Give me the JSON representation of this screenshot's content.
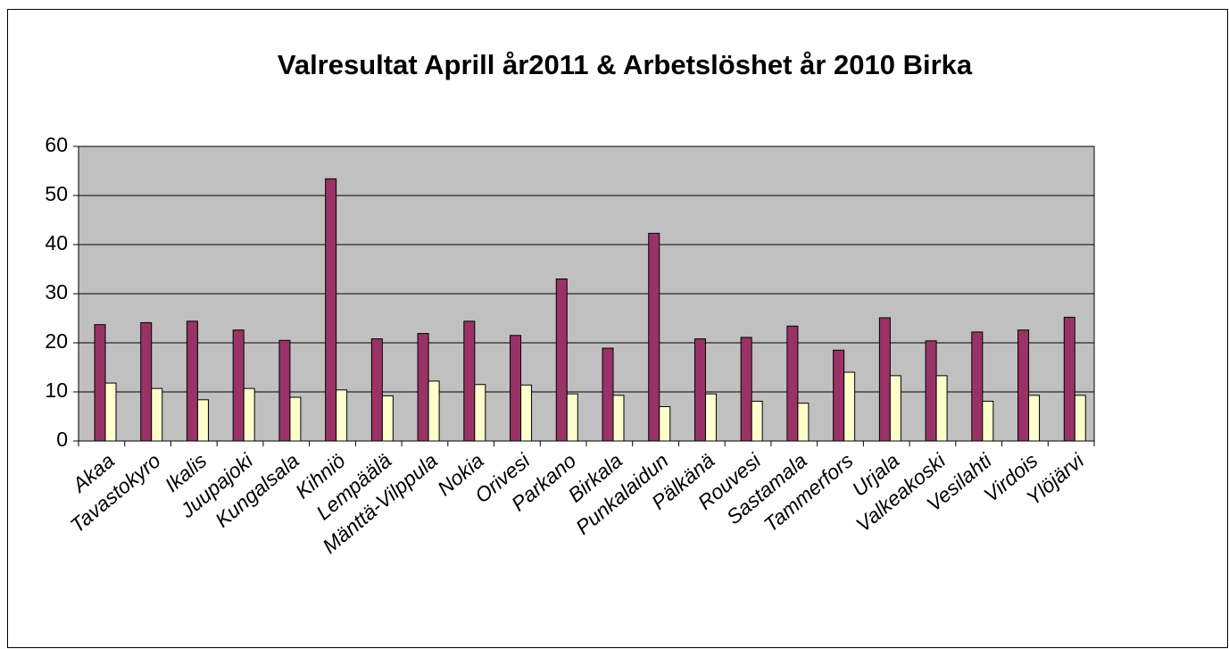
{
  "chart_data": {
    "type": "bar",
    "title": "Valresultat Aprill år2011 & Arbetslöshet år 2010 Birka",
    "categories": [
      "Akaa",
      "Tavastokyro",
      "Ikalis",
      "Juupajoki",
      "Kungalsala",
      "Kihniö",
      "Lempäälä",
      "Mänttä-Vilppula",
      "Nokia",
      "Orivesi",
      "Parkano",
      "Birkala",
      "Punkalaidun",
      "Pälkänä",
      "Rouvesi",
      "Sastamala",
      "Tammerfors",
      "Urjala",
      "Valkeakoski",
      "Vesilahti",
      "Virdois",
      "Ylöjärvi"
    ],
    "series": [
      {
        "color": "#993366",
        "values": [
          23.7,
          24.1,
          24.4,
          22.6,
          20.5,
          53.4,
          20.8,
          21.9,
          24.4,
          21.5,
          33.0,
          18.9,
          42.3,
          20.8,
          21.1,
          23.4,
          18.5,
          25.1,
          20.4,
          22.2,
          22.6,
          25.2
        ]
      },
      {
        "color": "#ffffcc",
        "values": [
          11.8,
          10.7,
          8.4,
          10.7,
          8.9,
          10.4,
          9.2,
          12.2,
          11.5,
          11.4,
          9.6,
          9.3,
          7.0,
          9.6,
          8.1,
          7.7,
          14.0,
          13.3,
          13.3,
          8.1,
          9.3,
          9.3
        ]
      }
    ],
    "ylim": [
      0,
      60
    ],
    "yticks": [
      0,
      10,
      20,
      30,
      40,
      50,
      60
    ],
    "grid": true,
    "plot_background": "#c0c0c0"
  }
}
